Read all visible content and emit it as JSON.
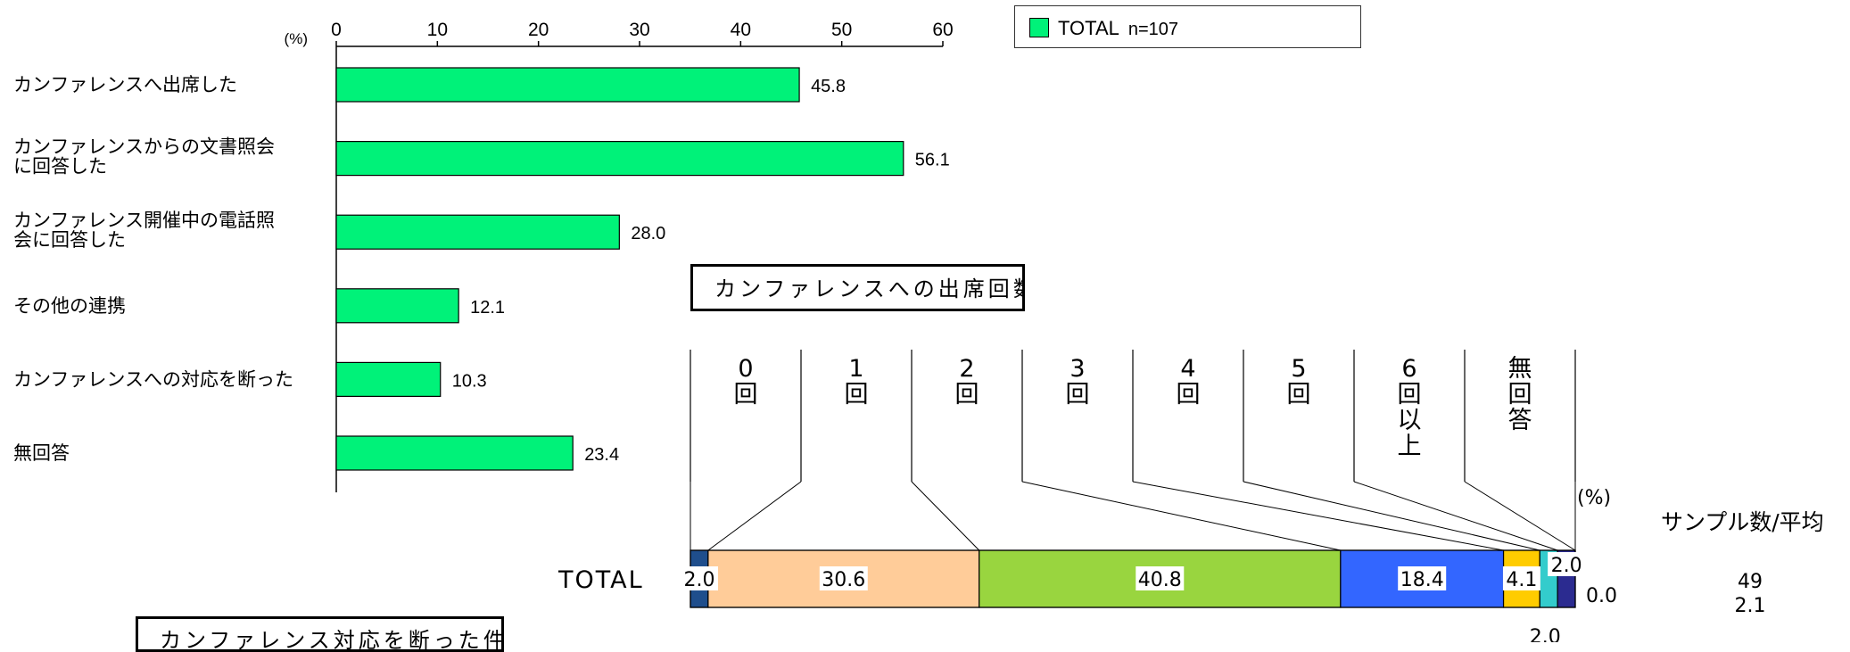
{
  "chart_data": [
    {
      "type": "bar",
      "orientation": "horizontal",
      "unit_label": "(%)",
      "xlim": [
        0,
        60
      ],
      "ticks": [
        "0",
        "10",
        "20",
        "30",
        "40",
        "50",
        "60"
      ],
      "legend": {
        "name": "TOTAL",
        "n": "n=107",
        "color": "#00f279",
        "position": "top-right"
      },
      "categories": [
        "カンファレンスへ出席した",
        "カンファレンスからの文書照会\nに回答した",
        "カンファレンス開催中の電話照\n会に回答した",
        "その他の連携",
        "カンファレンスへの対応を断った",
        "無回答"
      ],
      "values": [
        45.8,
        56.1,
        28.0,
        12.1,
        10.3,
        23.4
      ],
      "value_labels": [
        "45.8",
        "56.1",
        "28.0",
        "12.1",
        "10.3",
        "23.4"
      ]
    },
    {
      "type": "stacked-bar",
      "title": "カンファレンスへの出席回数",
      "unit_label": "(%)",
      "row_label": "TOTAL",
      "column_header": "サンプル数/平均",
      "sample_size": "49",
      "average": "2.1",
      "categories": [
        "0\n回",
        "1\n回",
        "2\n回",
        "3\n回",
        "4\n回",
        "5\n回",
        "6\n回\n以\n上",
        "無\n回\n答"
      ],
      "values": [
        2.0,
        30.6,
        40.8,
        18.4,
        4.1,
        2.0,
        2.0,
        0.0
      ],
      "value_labels": [
        "2.0",
        "30.6",
        "40.8",
        "18.4",
        "4.1",
        "2.0",
        "2.0",
        "0.0"
      ],
      "colors": [
        "#1f4e8c",
        "#ffcc99",
        "#99d53f",
        "#3366ff",
        "#ffcc00",
        "#33cccc",
        "#2b2b90",
        "#7a2a7a"
      ]
    }
  ],
  "boxes": {
    "third_chart_title": "カンファレンス対応を断った件数"
  }
}
